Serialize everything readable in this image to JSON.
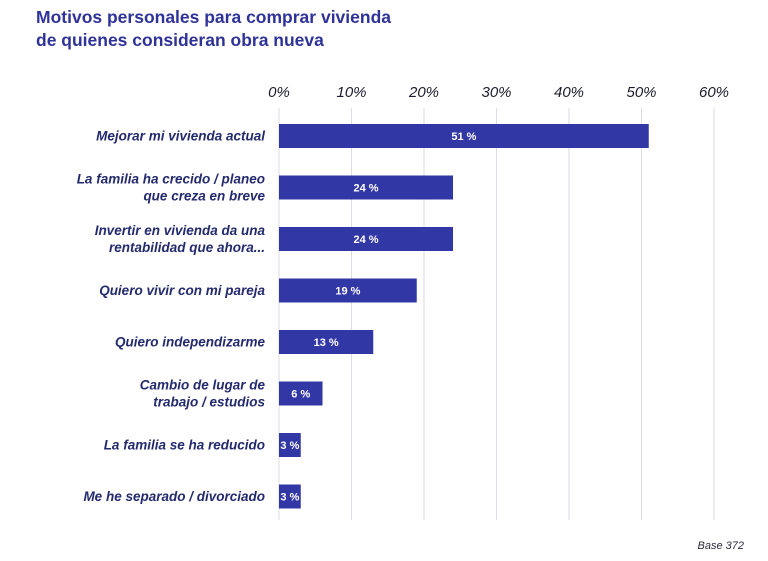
{
  "title_lines": [
    "Motivos personales para comprar vivienda",
    "de quienes consideran obra nueva"
  ],
  "base_note": "Base 372",
  "colors": {
    "bar": "#3237a6",
    "title": "#2f3399",
    "label": "#232a6e",
    "grid": "#dadbe3"
  },
  "chart_data": {
    "type": "bar",
    "orientation": "horizontal",
    "title": "Motivos personales para comprar vivienda de quienes consideran obra nueva",
    "xlim": [
      0,
      60
    ],
    "ticks": [
      0,
      10,
      20,
      30,
      40,
      50,
      60
    ],
    "tick_labels": [
      "0%",
      "10%",
      "20%",
      "30%",
      "40%",
      "50%",
      "60%"
    ],
    "grid": true,
    "categories": [
      [
        "Mejorar mi vivienda actual"
      ],
      [
        "La familia ha crecido / planeo",
        "que creza en breve"
      ],
      [
        "Invertir en vivienda da una",
        "rentabilidad que ahora..."
      ],
      [
        "Quiero vivir con mi pareja"
      ],
      [
        "Quiero independizarme"
      ],
      [
        "Cambio de lugar de",
        "trabajo / estudios"
      ],
      [
        "La familia se ha reducido"
      ],
      [
        "Me he separado / divorciado"
      ]
    ],
    "values": [
      51,
      24,
      24,
      19,
      13,
      6,
      3,
      3
    ],
    "value_labels": [
      "51 %",
      "24 %",
      "24 %",
      "19 %",
      "13 %",
      "6 %",
      "3 %",
      "3 %"
    ]
  }
}
